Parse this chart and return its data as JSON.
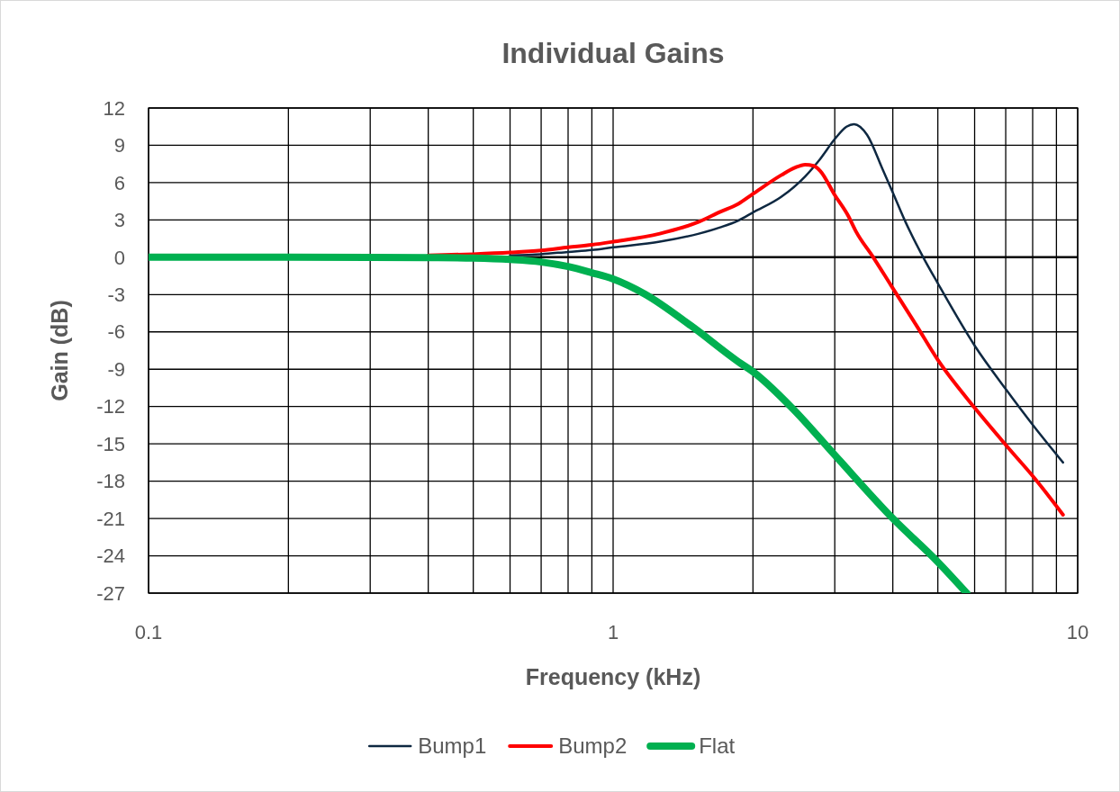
{
  "chart_data": {
    "type": "line",
    "title": "Individual Gains",
    "xlabel": "Frequency (kHz)",
    "ylabel": "Gain (dB)",
    "log": "x",
    "xlim": [
      0.1,
      10
    ],
    "xticks": [
      0.1,
      {
        "value": 0.2,
        "label": null
      },
      {
        "value": 0.3,
        "label": null
      },
      {
        "value": 0.4,
        "label": null
      },
      {
        "value": 0.5,
        "label": null
      },
      {
        "value": 0.6,
        "label": null
      },
      {
        "value": 0.7,
        "label": null
      },
      {
        "value": 0.8,
        "label": null
      },
      {
        "value": 0.9,
        "label": null
      },
      1,
      {
        "value": 2,
        "label": null
      },
      {
        "value": 3,
        "label": null
      },
      {
        "value": 4,
        "label": null
      },
      {
        "value": 5,
        "label": null
      },
      {
        "value": 6,
        "label": null
      },
      {
        "value": 7,
        "label": null
      },
      {
        "value": 8,
        "label": null
      },
      {
        "value": 9,
        "label": null
      },
      10
    ],
    "ylim": [
      -27,
      12
    ],
    "yticks": [
      -27,
      -24,
      -21,
      -18,
      -15,
      -12,
      -9,
      -6,
      -3,
      0,
      3,
      6,
      9,
      12
    ],
    "grid": true,
    "legend": "bottom",
    "ref_lines": [
      {
        "axis": "y",
        "value": 0,
        "color": "#000000"
      }
    ],
    "series": [
      {
        "name": "Bump1",
        "color": "#0e2841",
        "x": [
          0.6,
          0.7,
          0.8,
          0.9,
          1.0,
          1.26,
          1.53,
          1.7,
          1.86,
          2.0,
          2.3,
          2.59,
          2.79,
          3.0,
          3.18,
          3.3,
          3.52,
          3.8,
          4.0,
          4.24,
          4.65,
          5.0,
          6.0,
          7.0,
          8.05,
          9.3
        ],
        "values": [
          0.15,
          0.25,
          0.43,
          0.58,
          0.8,
          1.25,
          1.9,
          2.4,
          2.95,
          3.6,
          4.85,
          6.5,
          7.9,
          9.5,
          10.5,
          10.7,
          9.85,
          7.1,
          5.2,
          3.0,
          0,
          -2.1,
          -7.1,
          -10.6,
          -13.6,
          -16.5
        ]
      },
      {
        "name": "Bump2",
        "color": "#ff0000",
        "x": [
          0.4,
          0.5,
          0.6,
          0.7,
          0.8,
          0.9,
          1.0,
          1.26,
          1.53,
          1.7,
          1.86,
          2.0,
          2.3,
          2.46,
          2.59,
          2.7,
          2.79,
          3.0,
          3.21,
          3.33,
          3.63,
          3.97,
          4.5,
          5.0,
          6.0,
          7.1,
          8.05,
          9.3
        ],
        "values": [
          0.15,
          0.25,
          0.38,
          0.55,
          0.8,
          1.0,
          1.25,
          1.9,
          2.85,
          3.65,
          4.3,
          5.1,
          6.6,
          7.2,
          7.45,
          7.35,
          6.95,
          5.0,
          3.3,
          2.1,
          0,
          -2.3,
          -5.5,
          -8.25,
          -12.1,
          -15.35,
          -17.7,
          -20.7
        ]
      },
      {
        "name": "Flat",
        "color": "#00b050",
        "x": [
          0.1,
          0.2,
          0.3,
          0.4,
          0.5,
          0.6,
          0.7,
          0.8,
          0.9,
          1.0,
          1.17,
          1.47,
          1.86,
          2.0,
          2.44,
          3.0,
          4.0,
          5.0,
          5.77
        ],
        "values": [
          0,
          0,
          -0.01,
          -0.03,
          -0.07,
          -0.18,
          -0.38,
          -0.75,
          -1.25,
          -1.75,
          -2.96,
          -5.5,
          -8.4,
          -9.2,
          -12.2,
          -15.9,
          -21.0,
          -24.5,
          -27
        ]
      }
    ]
  }
}
